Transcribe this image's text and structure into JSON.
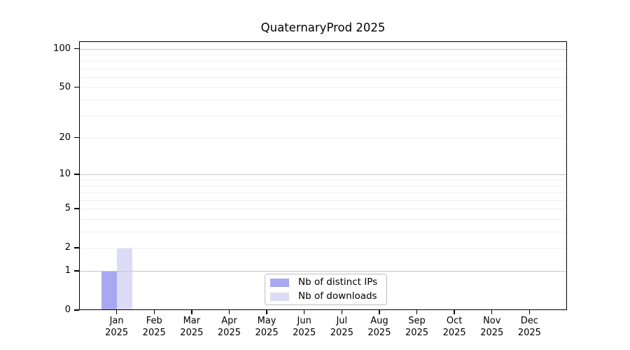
{
  "chart_data": {
    "type": "bar",
    "title": "QuaternaryProd 2025",
    "y_scale": "log10(1+x)",
    "categories": [
      "Jan",
      "Feb",
      "Mar",
      "Apr",
      "May",
      "Jun",
      "Jul",
      "Aug",
      "Sep",
      "Oct",
      "Nov",
      "Dec"
    ],
    "year_label": "2025",
    "series": [
      {
        "name": "Nb of distinct IPs",
        "color": "#a8a8f2",
        "values": [
          1,
          0,
          0,
          0,
          0,
          0,
          0,
          0,
          0,
          0,
          0,
          0
        ]
      },
      {
        "name": "Nb of downloads",
        "color": "#dcdcf6",
        "values": [
          2,
          0,
          0,
          0,
          0,
          0,
          0,
          0,
          0,
          0,
          0,
          0
        ]
      }
    ],
    "y_ticks": [
      0,
      1,
      2,
      5,
      10,
      20,
      50,
      100
    ],
    "y_gridlines_major": [
      1,
      10,
      100
    ],
    "y_gridlines_minor": [
      2,
      3,
      4,
      5,
      6,
      7,
      8,
      9,
      20,
      30,
      40,
      50,
      60,
      70,
      80,
      90
    ],
    "ylim": [
      0,
      114
    ],
    "xlabel": "",
    "ylabel": "",
    "grid": "horizontal",
    "legend_position": "bottom-center"
  },
  "colors": {
    "grid_major": "#c6c6c6",
    "grid_minor": "#efefef",
    "axis": "#000000",
    "background": "#ffffff",
    "bar_distinct_ips": "#a8a8f2",
    "bar_downloads": "#dcdcf6",
    "legend_border": "#c0c0c0"
  }
}
